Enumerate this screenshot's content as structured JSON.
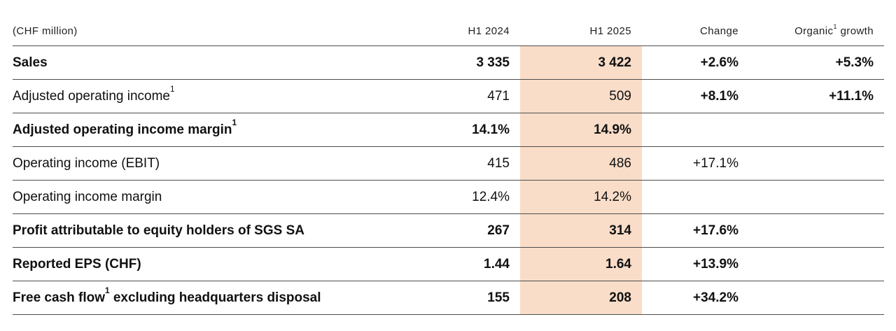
{
  "colors": {
    "highlight_column": "#f9ddc8",
    "rule_line": "#4d4d4d",
    "text": "#111111"
  },
  "header": {
    "unit_label": "(CHF million)",
    "columns": [
      {
        "pre": "H1 2024",
        "sup": "",
        "post": ""
      },
      {
        "pre": "H1 2025",
        "sup": "",
        "post": ""
      },
      {
        "pre": "Change",
        "sup": "",
        "post": ""
      },
      {
        "pre": "Organic",
        "sup": "1",
        "post": " growth"
      }
    ]
  },
  "rows": [
    {
      "label_pre": "Sales",
      "label_sup": "",
      "label_post": "",
      "h1_2024": "3 335",
      "h1_2025": "3 422",
      "change": "+2.6%",
      "organic": "+5.3%"
    },
    {
      "label_pre": "Adjusted operating income",
      "label_sup": "1",
      "label_post": "",
      "h1_2024": "471",
      "h1_2025": "509",
      "change": "+8.1%",
      "organic": "+11.1%"
    },
    {
      "label_pre": "Adjusted operating income margin",
      "label_sup": "1",
      "label_post": "",
      "h1_2024": "14.1%",
      "h1_2025": "14.9%",
      "change": "",
      "organic": ""
    },
    {
      "label_pre": "Operating income (EBIT)",
      "label_sup": "",
      "label_post": "",
      "h1_2024": "415",
      "h1_2025": "486",
      "change": "+17.1%",
      "organic": ""
    },
    {
      "label_pre": "Operating income margin",
      "label_sup": "",
      "label_post": "",
      "h1_2024": "12.4%",
      "h1_2025": "14.2%",
      "change": "",
      "organic": ""
    },
    {
      "label_pre": "Profit attributable to equity holders of SGS SA",
      "label_sup": "",
      "label_post": "",
      "h1_2024": "267",
      "h1_2025": "314",
      "change": "+17.6%",
      "organic": ""
    },
    {
      "label_pre": "Reported EPS (CHF)",
      "label_sup": "",
      "label_post": "",
      "h1_2024": "1.44",
      "h1_2025": "1.64",
      "change": "+13.9%",
      "organic": ""
    },
    {
      "label_pre": "Free cash flow",
      "label_sup": "1",
      "label_post": " excluding headquarters disposal",
      "h1_2024": "155",
      "h1_2025": "208",
      "change": "+34.2%",
      "organic": ""
    }
  ]
}
